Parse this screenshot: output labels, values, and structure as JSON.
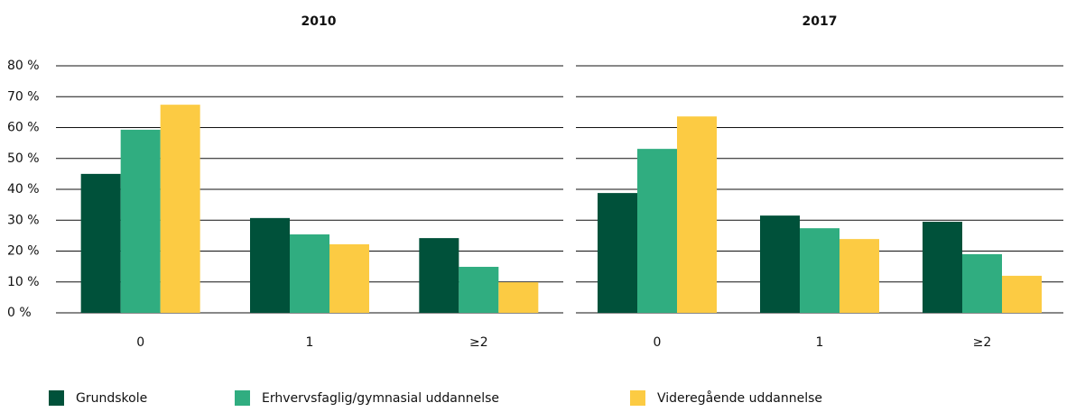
{
  "chart_data": [
    {
      "type": "bar",
      "title": "2010",
      "categories": [
        "0",
        "1",
        "≥2"
      ],
      "series": [
        {
          "name": "Grundskole",
          "color": "#00513a",
          "values": [
            45,
            30.7,
            24.2
          ]
        },
        {
          "name": "Erhvervsfaglig/gymnasial uddannelse",
          "color": "#30ad80",
          "values": [
            59.3,
            25.4,
            14.9
          ]
        },
        {
          "name": "Videregående uddannelse",
          "color": "#fccb43",
          "values": [
            67.4,
            22.2,
            9.9
          ]
        }
      ],
      "ylim": [
        0,
        80
      ],
      "yticks": [
        {
          "value": 0,
          "label": "0 %"
        },
        {
          "value": 10,
          "label": "10 %"
        },
        {
          "value": 20,
          "label": "20 %"
        },
        {
          "value": 30,
          "label": "30 %"
        },
        {
          "value": 40,
          "label": "40 %"
        },
        {
          "value": 50,
          "label": "50 %"
        },
        {
          "value": 60,
          "label": "60 %"
        },
        {
          "value": 70,
          "label": "70 %"
        },
        {
          "value": 80,
          "label": "80 %"
        }
      ],
      "grid": true
    },
    {
      "type": "bar",
      "title": "2017",
      "categories": [
        "0",
        "1",
        "≥2"
      ],
      "series": [
        {
          "values": [
            38.8,
            31.5,
            29.5
          ]
        },
        {
          "values": [
            53.1,
            27.4,
            19
          ]
        },
        {
          "values": [
            63.6,
            23.9,
            12
          ]
        }
      ],
      "ylim": [
        0,
        80
      ],
      "yticks": [
        0,
        10,
        20,
        30,
        40,
        50,
        60,
        70,
        80
      ],
      "grid": true
    }
  ]
}
